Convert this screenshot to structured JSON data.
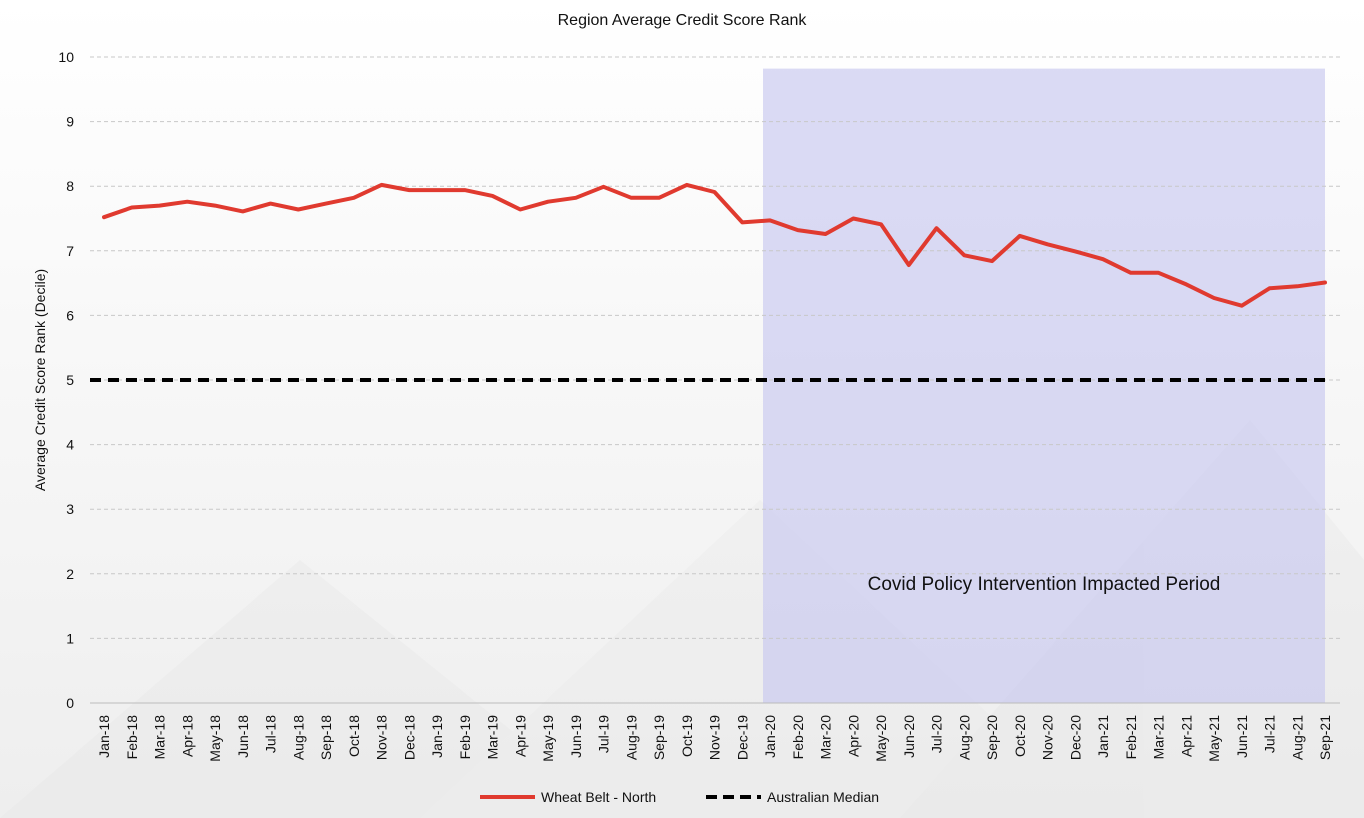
{
  "chart_data": {
    "type": "line",
    "title": "Region Average Credit Score Rank",
    "ylabel": "Average Credit Score Rank (Decile)",
    "xlabel": "",
    "ylim": [
      0,
      10
    ],
    "yticks": [
      0,
      1,
      2,
      3,
      4,
      5,
      6,
      7,
      8,
      9,
      10
    ],
    "grid": true,
    "legend_position": "bottom",
    "categories": [
      "Jan-18",
      "Feb-18",
      "Mar-18",
      "Apr-18",
      "May-18",
      "Jun-18",
      "Jul-18",
      "Aug-18",
      "Sep-18",
      "Oct-18",
      "Nov-18",
      "Dec-18",
      "Jan-19",
      "Feb-19",
      "Mar-19",
      "Apr-19",
      "May-19",
      "Jun-19",
      "Jul-19",
      "Aug-19",
      "Sep-19",
      "Oct-19",
      "Nov-19",
      "Dec-19",
      "Jan-20",
      "Feb-20",
      "Mar-20",
      "Apr-20",
      "May-20",
      "Jun-20",
      "Jul-20",
      "Aug-20",
      "Sep-20",
      "Oct-20",
      "Nov-20",
      "Dec-20",
      "Jan-21",
      "Feb-21",
      "Mar-21",
      "Apr-21",
      "May-21",
      "Jun-21",
      "Jul-21",
      "Aug-21",
      "Sep-21"
    ],
    "series": [
      {
        "name": "Wheat Belt - North",
        "color": "#e03a2f",
        "style": "solid",
        "values": [
          7.52,
          7.67,
          7.7,
          7.76,
          7.7,
          7.61,
          7.73,
          7.64,
          7.73,
          7.82,
          8.02,
          7.94,
          7.94,
          7.94,
          7.85,
          7.64,
          7.76,
          7.82,
          7.99,
          7.82,
          7.82,
          8.02,
          7.91,
          7.44,
          7.47,
          7.32,
          7.26,
          7.5,
          7.41,
          6.78,
          7.35,
          6.93,
          6.84,
          7.23,
          7.1,
          6.99,
          6.87,
          6.66,
          6.66,
          6.48,
          6.27,
          6.15,
          6.42,
          6.45,
          6.51
        ]
      },
      {
        "name": "Australian Median",
        "color": "#000000",
        "style": "dashed",
        "values": [
          5,
          5,
          5,
          5,
          5,
          5,
          5,
          5,
          5,
          5,
          5,
          5,
          5,
          5,
          5,
          5,
          5,
          5,
          5,
          5,
          5,
          5,
          5,
          5,
          5,
          5,
          5,
          5,
          5,
          5,
          5,
          5,
          5,
          5,
          5,
          5,
          5,
          5,
          5,
          5,
          5,
          5,
          5,
          5,
          5
        ]
      }
    ],
    "annotations": [
      {
        "text": "Covid Policy Intervention Impacted Period",
        "shaded_start": "Jan-20",
        "shaded_end": "Sep-21",
        "color": "#c8c8f0"
      }
    ]
  }
}
